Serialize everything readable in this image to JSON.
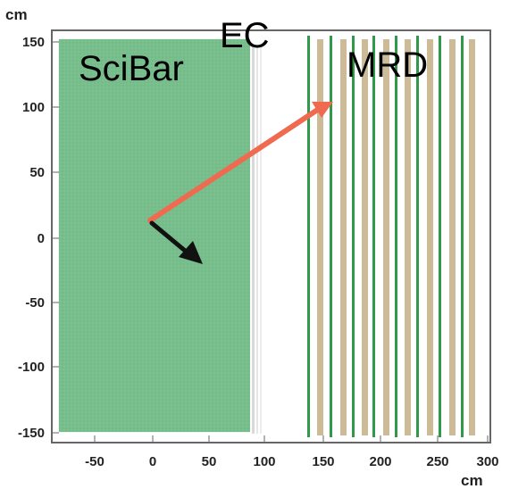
{
  "y_unit": "cm",
  "x_unit": "cm",
  "x_ticks": [
    "-50",
    "0",
    "50",
    "100",
    "150",
    "200",
    "250",
    "300"
  ],
  "y_ticks": [
    "150",
    "100",
    "50",
    "0",
    "-50",
    "-100",
    "-150"
  ],
  "labels": {
    "scibar": "SciBar",
    "ec": "EC",
    "mrd": "MRD"
  },
  "colors": {
    "scibar_fill": "#7cc08f",
    "scibar_grid": "#5aa873",
    "mrd_green": "#2f9a4a",
    "mrd_tan": "#c8b48c",
    "red_track": "#f06a50",
    "black_track": "#111111"
  },
  "x_range": [
    -85,
    300
  ],
  "y_range": [
    -160,
    155
  ]
}
